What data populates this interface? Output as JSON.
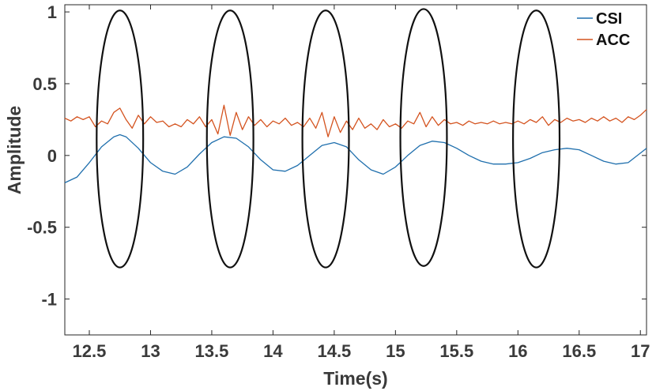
{
  "chart_data": {
    "type": "line",
    "xlabel": "Time(s)",
    "ylabel": "Amplitude",
    "xlim": [
      12.3,
      17.05
    ],
    "ylim": [
      -1.25,
      1.05
    ],
    "xticks": [
      12.5,
      13,
      13.5,
      14,
      14.5,
      15,
      15.5,
      16,
      16.5,
      17
    ],
    "xtick_labels": [
      "12.5",
      "13",
      "13.5",
      "14",
      "14.5",
      "15",
      "15.5",
      "16",
      "16.5",
      "17"
    ],
    "yticks": [
      1,
      0.5,
      0,
      -0.5,
      -1
    ],
    "ytick_labels": [
      "1",
      "0.5",
      "0",
      "-0.5",
      "-1"
    ],
    "grid": false,
    "legend_position": "top-right",
    "series": [
      {
        "name": "CSI",
        "color": "#1f6fad",
        "x": [
          12.3,
          12.4,
          12.5,
          12.6,
          12.7,
          12.75,
          12.8,
          12.9,
          13.0,
          13.1,
          13.2,
          13.3,
          13.4,
          13.5,
          13.6,
          13.7,
          13.8,
          13.9,
          14.0,
          14.1,
          14.2,
          14.3,
          14.4,
          14.5,
          14.6,
          14.7,
          14.8,
          14.9,
          15.0,
          15.1,
          15.2,
          15.3,
          15.4,
          15.5,
          15.6,
          15.7,
          15.8,
          15.9,
          16.0,
          16.1,
          16.2,
          16.3,
          16.4,
          16.5,
          16.6,
          16.7,
          16.8,
          16.9,
          17.05
        ],
        "y": [
          -0.19,
          -0.15,
          -0.05,
          0.06,
          0.13,
          0.145,
          0.13,
          0.05,
          -0.05,
          -0.11,
          -0.13,
          -0.08,
          0.01,
          0.09,
          0.13,
          0.12,
          0.06,
          -0.03,
          -0.1,
          -0.11,
          -0.07,
          0.0,
          0.07,
          0.09,
          0.06,
          -0.03,
          -0.1,
          -0.13,
          -0.08,
          0.0,
          0.07,
          0.1,
          0.09,
          0.05,
          0.0,
          -0.04,
          -0.06,
          -0.06,
          -0.05,
          -0.02,
          0.02,
          0.04,
          0.05,
          0.04,
          0.0,
          -0.04,
          -0.06,
          -0.05,
          0.05
        ]
      },
      {
        "name": "ACC",
        "color": "#d4531f",
        "x": [
          12.3,
          12.35,
          12.4,
          12.45,
          12.5,
          12.55,
          12.6,
          12.65,
          12.7,
          12.75,
          12.8,
          12.85,
          12.9,
          12.95,
          13.0,
          13.05,
          13.1,
          13.15,
          13.2,
          13.25,
          13.3,
          13.35,
          13.4,
          13.45,
          13.5,
          13.55,
          13.6,
          13.65,
          13.7,
          13.75,
          13.8,
          13.85,
          13.9,
          13.95,
          14.0,
          14.05,
          14.1,
          14.15,
          14.2,
          14.25,
          14.3,
          14.35,
          14.4,
          14.45,
          14.5,
          14.55,
          14.6,
          14.65,
          14.7,
          14.75,
          14.8,
          14.85,
          14.9,
          14.95,
          15.0,
          15.05,
          15.1,
          15.15,
          15.2,
          15.25,
          15.3,
          15.35,
          15.4,
          15.45,
          15.5,
          15.55,
          15.6,
          15.65,
          15.7,
          15.75,
          15.8,
          15.85,
          15.9,
          15.95,
          16.0,
          16.05,
          16.1,
          16.15,
          16.2,
          16.25,
          16.3,
          16.35,
          16.4,
          16.45,
          16.5,
          16.55,
          16.6,
          16.65,
          16.7,
          16.75,
          16.8,
          16.85,
          16.9,
          16.95,
          17.0,
          17.05
        ],
        "y": [
          0.26,
          0.24,
          0.27,
          0.25,
          0.27,
          0.2,
          0.24,
          0.22,
          0.3,
          0.33,
          0.25,
          0.19,
          0.28,
          0.22,
          0.27,
          0.23,
          0.24,
          0.2,
          0.22,
          0.2,
          0.25,
          0.22,
          0.27,
          0.2,
          0.25,
          0.15,
          0.35,
          0.14,
          0.3,
          0.18,
          0.27,
          0.21,
          0.25,
          0.2,
          0.24,
          0.22,
          0.26,
          0.21,
          0.23,
          0.2,
          0.26,
          0.19,
          0.3,
          0.13,
          0.27,
          0.16,
          0.24,
          0.18,
          0.26,
          0.19,
          0.22,
          0.18,
          0.25,
          0.2,
          0.22,
          0.19,
          0.24,
          0.22,
          0.3,
          0.2,
          0.27,
          0.21,
          0.25,
          0.22,
          0.23,
          0.21,
          0.24,
          0.22,
          0.23,
          0.22,
          0.24,
          0.22,
          0.23,
          0.22,
          0.24,
          0.22,
          0.25,
          0.23,
          0.27,
          0.21,
          0.25,
          0.23,
          0.26,
          0.24,
          0.25,
          0.23,
          0.26,
          0.24,
          0.27,
          0.24,
          0.26,
          0.23,
          0.27,
          0.25,
          0.28,
          0.32
        ]
      }
    ],
    "annotations": {
      "ellipses": [
        {
          "cx": 12.75,
          "cy": 0.115,
          "rx": 0.19,
          "ry": 0.895
        },
        {
          "cx": 13.65,
          "cy": 0.115,
          "rx": 0.19,
          "ry": 0.895
        },
        {
          "cx": 14.43,
          "cy": 0.115,
          "rx": 0.19,
          "ry": 0.895
        },
        {
          "cx": 15.23,
          "cy": 0.125,
          "rx": 0.19,
          "ry": 0.895
        },
        {
          "cx": 16.15,
          "cy": 0.115,
          "rx": 0.19,
          "ry": 0.895
        }
      ],
      "ellipse_color": "#111111"
    }
  }
}
